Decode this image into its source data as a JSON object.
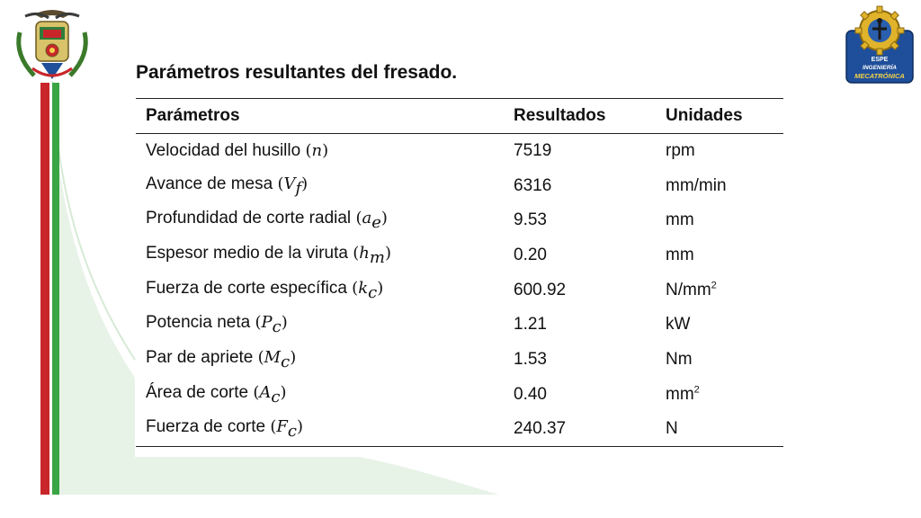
{
  "title": "Parámetros resultantes del fresado.",
  "table": {
    "headers": [
      "Parámetros",
      "Resultados",
      "Unidades"
    ],
    "rows": [
      {
        "label": "Velocidad del husillo",
        "sym": "n",
        "sub": "",
        "value": "7519",
        "unit": "rpm",
        "unit_sup": ""
      },
      {
        "label": "Avance de mesa",
        "sym": "V",
        "sub": "f",
        "value": "6316",
        "unit": "mm/min",
        "unit_sup": ""
      },
      {
        "label": "Profundidad de corte radial",
        "sym": "a",
        "sub": "e",
        "value": "9.53",
        "unit": "mm",
        "unit_sup": ""
      },
      {
        "label": "Espesor medio de la viruta",
        "sym": "h",
        "sub": "m",
        "value": "0.20",
        "unit": "mm",
        "unit_sup": ""
      },
      {
        "label": "Fuerza de corte específica",
        "sym": "k",
        "sub": "c",
        "value": "600.92",
        "unit": "N/mm",
        "unit_sup": "2"
      },
      {
        "label": "Potencia neta",
        "sym": "P",
        "sub": "c",
        "value": "1.21",
        "unit": "kW",
        "unit_sup": ""
      },
      {
        "label": "Par de apriete",
        "sym": "M",
        "sub": "c",
        "value": "1.53",
        "unit": "Nm",
        "unit_sup": ""
      },
      {
        "label": "Área de corte",
        "sym": "A",
        "sub": "c",
        "value": "0.40",
        "unit": "mm",
        "unit_sup": "2"
      },
      {
        "label": "Fuerza de corte",
        "sym": "F",
        "sub": "c",
        "value": "240.37",
        "unit": "N",
        "unit_sup": ""
      }
    ]
  },
  "logo_right": {
    "line1": "ESPE",
    "line2": "INGENIERÍA",
    "line3": "MECATRÓNICA"
  },
  "colors": {
    "red_stripe": "#c8262b",
    "green_stripe": "#3aa544",
    "green_wash": "#e6f2e6",
    "logo_blue": "#1f4f9a"
  },
  "icons": [
    "university-crest-icon",
    "mechatronics-gear-logo-icon"
  ]
}
